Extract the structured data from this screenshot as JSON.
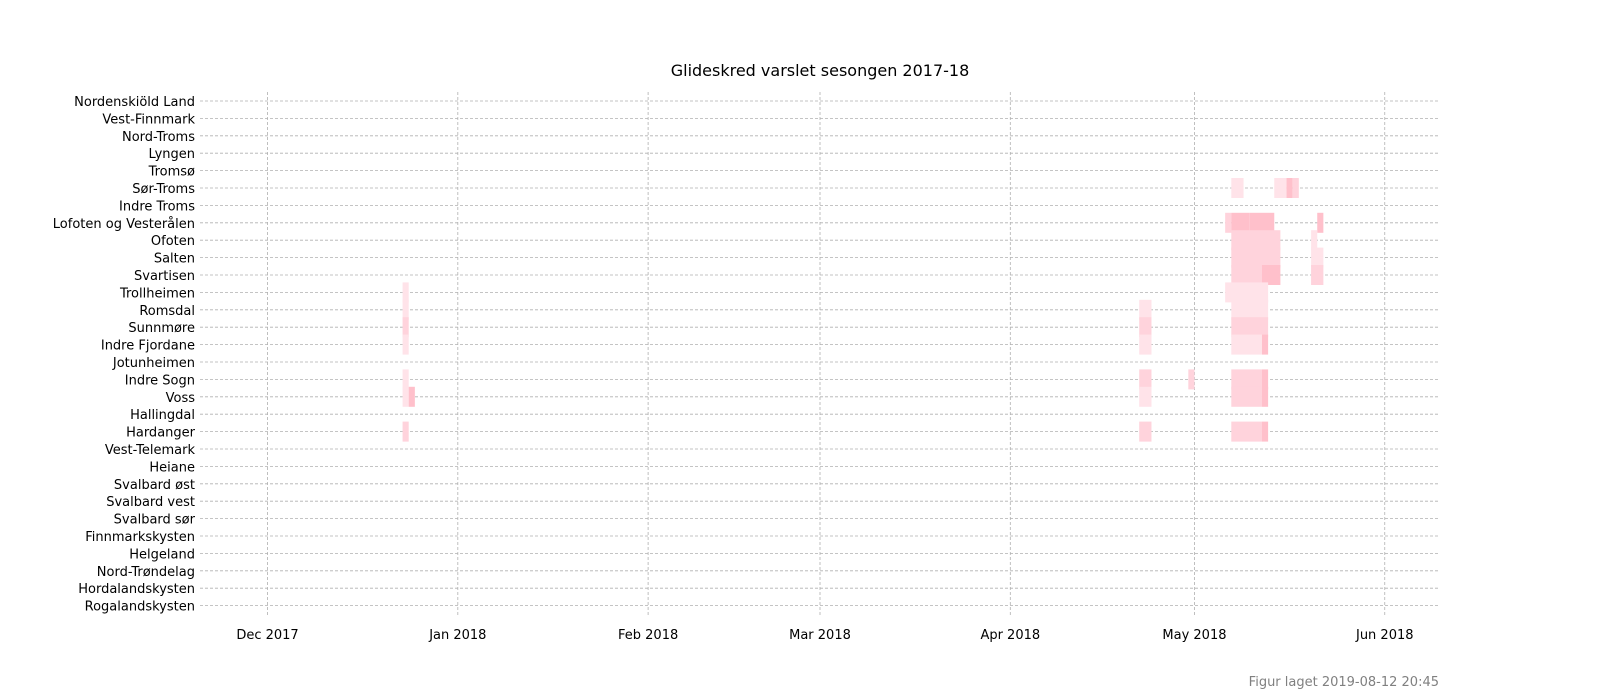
{
  "chart_data": {
    "type": "heatmap",
    "title": "Glideskred varslet sesongen 2017-18",
    "xlabel": "",
    "ylabel": "",
    "x_axis": {
      "type": "date",
      "range": [
        "2017-11-20",
        "2018-06-10"
      ],
      "ticks": [
        {
          "date": "2017-12-01",
          "label": "Dec 2017"
        },
        {
          "date": "2018-01-01",
          "label": "Jan 2018"
        },
        {
          "date": "2018-02-01",
          "label": "Feb 2018"
        },
        {
          "date": "2018-03-01",
          "label": "Mar 2018"
        },
        {
          "date": "2018-04-01",
          "label": "Apr 2018"
        },
        {
          "date": "2018-05-01",
          "label": "May 2018"
        },
        {
          "date": "2018-06-01",
          "label": "Jun 2018"
        }
      ]
    },
    "grid": true,
    "colors": {
      "level1": "#ffe3e9",
      "level2": "#ffd3dc",
      "level3": "#ffc0cb",
      "grid": "#b0b0b0"
    },
    "regions": [
      "Nordenskiöld Land",
      "Vest-Finnmark",
      "Nord-Troms",
      "Lyngen",
      "Tromsø",
      "Sør-Troms",
      "Indre Troms",
      "Lofoten og Vesterålen",
      "Ofoten",
      "Salten",
      "Svartisen",
      "Trollheimen",
      "Romsdal",
      "Sunnmøre",
      "Indre Fjordane",
      "Jotunheimen",
      "Indre Sogn",
      "Voss",
      "Hallingdal",
      "Hardanger",
      "Vest-Telemark",
      "Heiane",
      "Svalbard øst",
      "Svalbard vest",
      "Svalbard sør",
      "Finnmarkskysten",
      "Helgeland",
      "Nord-Trøndelag",
      "Hordalandskysten",
      "Rogalandskysten"
    ],
    "warnings": [
      {
        "region": "Sør-Troms",
        "start": "2018-05-07",
        "end": "2018-05-09",
        "level": 1
      },
      {
        "region": "Sør-Troms",
        "start": "2018-05-14",
        "end": "2018-05-16",
        "level": 1
      },
      {
        "region": "Sør-Troms",
        "start": "2018-05-16",
        "end": "2018-05-17",
        "level": 3
      },
      {
        "region": "Sør-Troms",
        "start": "2018-05-17",
        "end": "2018-05-18",
        "level": 2
      },
      {
        "region": "Lofoten og Vesterålen",
        "start": "2018-05-06",
        "end": "2018-05-07",
        "level": 2
      },
      {
        "region": "Lofoten og Vesterålen",
        "start": "2018-05-07",
        "end": "2018-05-10",
        "level": 3
      },
      {
        "region": "Lofoten og Vesterålen",
        "start": "2018-05-10",
        "end": "2018-05-14",
        "level": 3
      },
      {
        "region": "Lofoten og Vesterålen",
        "start": "2018-05-21",
        "end": "2018-05-22",
        "level": 3
      },
      {
        "region": "Ofoten",
        "start": "2018-05-07",
        "end": "2018-05-15",
        "level": 2
      },
      {
        "region": "Ofoten",
        "start": "2018-05-20",
        "end": "2018-05-21",
        "level": 1
      },
      {
        "region": "Salten",
        "start": "2018-05-07",
        "end": "2018-05-15",
        "level": 2
      },
      {
        "region": "Salten",
        "start": "2018-05-20",
        "end": "2018-05-22",
        "level": 1
      },
      {
        "region": "Svartisen",
        "start": "2018-05-07",
        "end": "2018-05-12",
        "level": 2
      },
      {
        "region": "Svartisen",
        "start": "2018-05-12",
        "end": "2018-05-15",
        "level": 3
      },
      {
        "region": "Svartisen",
        "start": "2018-05-20",
        "end": "2018-05-22",
        "level": 2
      },
      {
        "region": "Trollheimen",
        "start": "2017-12-23",
        "end": "2017-12-24",
        "level": 1
      },
      {
        "region": "Trollheimen",
        "start": "2018-05-06",
        "end": "2018-05-13",
        "level": 1
      },
      {
        "region": "Romsdal",
        "start": "2017-12-23",
        "end": "2017-12-24",
        "level": 1
      },
      {
        "region": "Romsdal",
        "start": "2018-04-22",
        "end": "2018-04-24",
        "level": 1
      },
      {
        "region": "Romsdal",
        "start": "2018-05-07",
        "end": "2018-05-13",
        "level": 1
      },
      {
        "region": "Sunnmøre",
        "start": "2017-12-23",
        "end": "2017-12-24",
        "level": 2
      },
      {
        "region": "Sunnmøre",
        "start": "2018-04-22",
        "end": "2018-04-24",
        "level": 2
      },
      {
        "region": "Sunnmøre",
        "start": "2018-05-07",
        "end": "2018-05-13",
        "level": 2
      },
      {
        "region": "Indre Fjordane",
        "start": "2017-12-23",
        "end": "2017-12-24",
        "level": 1
      },
      {
        "region": "Indre Fjordane",
        "start": "2018-04-22",
        "end": "2018-04-24",
        "level": 1
      },
      {
        "region": "Indre Fjordane",
        "start": "2018-05-07",
        "end": "2018-05-12",
        "level": 1
      },
      {
        "region": "Indre Fjordane",
        "start": "2018-05-12",
        "end": "2018-05-13",
        "level": 3
      },
      {
        "region": "Indre Sogn",
        "start": "2017-12-23",
        "end": "2017-12-24",
        "level": 1
      },
      {
        "region": "Indre Sogn",
        "start": "2018-04-22",
        "end": "2018-04-24",
        "level": 2
      },
      {
        "region": "Indre Sogn",
        "start": "2018-04-30",
        "end": "2018-05-01",
        "level": 2
      },
      {
        "region": "Indre Sogn",
        "start": "2018-05-07",
        "end": "2018-05-12",
        "level": 2
      },
      {
        "region": "Indre Sogn",
        "start": "2018-05-12",
        "end": "2018-05-13",
        "level": 3
      },
      {
        "region": "Voss",
        "start": "2017-12-23",
        "end": "2017-12-24",
        "level": 1
      },
      {
        "region": "Voss",
        "start": "2017-12-24",
        "end": "2017-12-25",
        "level": 3
      },
      {
        "region": "Voss",
        "start": "2018-04-22",
        "end": "2018-04-24",
        "level": 1
      },
      {
        "region": "Voss",
        "start": "2018-05-07",
        "end": "2018-05-12",
        "level": 2
      },
      {
        "region": "Voss",
        "start": "2018-05-12",
        "end": "2018-05-13",
        "level": 3
      },
      {
        "region": "Hardanger",
        "start": "2017-12-23",
        "end": "2017-12-24",
        "level": 2
      },
      {
        "region": "Hardanger",
        "start": "2018-04-22",
        "end": "2018-04-24",
        "level": 2
      },
      {
        "region": "Hardanger",
        "start": "2018-05-07",
        "end": "2018-05-12",
        "level": 2
      },
      {
        "region": "Hardanger",
        "start": "2018-05-12",
        "end": "2018-05-13",
        "level": 3
      }
    ]
  },
  "footer": {
    "created": "Figur laget 2019-08-12 20:45"
  }
}
